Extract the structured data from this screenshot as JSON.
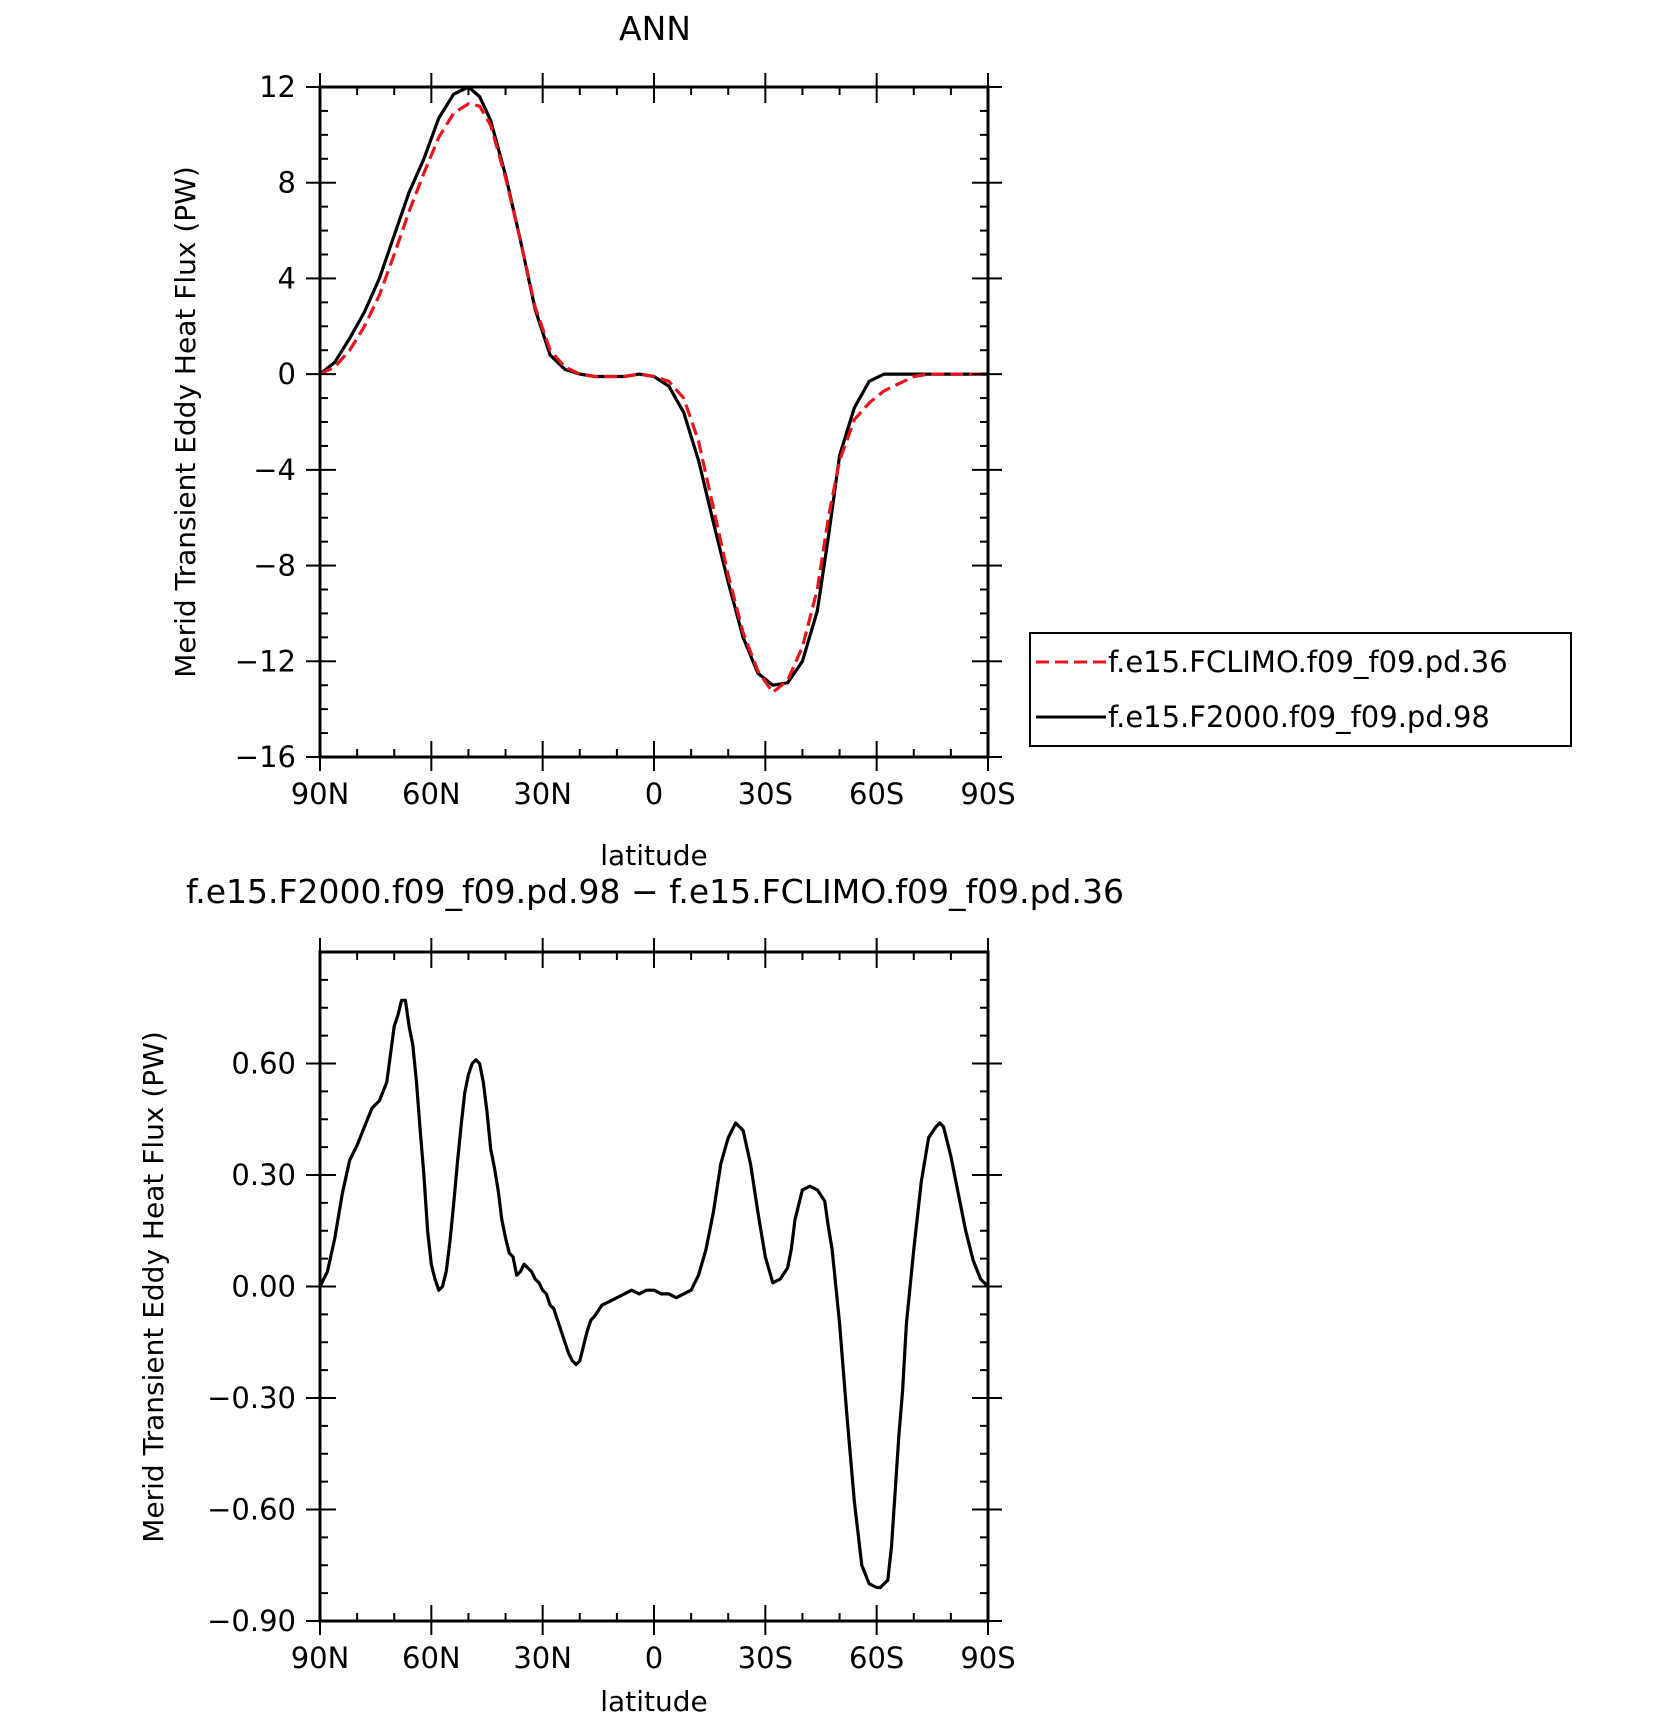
{
  "chart_data": [
    {
      "type": "line",
      "title": "ANN",
      "xlabel": "latitude",
      "ylabel": "Merid Transient Eddy Heat Flux (PW)",
      "x_ticks": [
        90,
        60,
        30,
        0,
        -30,
        -60,
        -90
      ],
      "x_tick_labels": [
        "90N",
        "60N",
        "30N",
        "0",
        "30S",
        "60S",
        "90S"
      ],
      "xlim": [
        90,
        -90
      ],
      "ylim": [
        -16,
        12
      ],
      "y_ticks": [
        12,
        8,
        4,
        0,
        -4,
        -8,
        -12,
        -16
      ],
      "y_tick_labels": [
        "12",
        "8",
        "4",
        "0",
        "−4",
        "−8",
        "−12",
        "−16"
      ],
      "legend_position": "right",
      "series": [
        {
          "name": "f.e15.FCLIMO.f09_f09.pd.36",
          "color": "#e8141e",
          "dash": "dashed",
          "x": [
            90,
            86,
            82,
            78,
            74,
            70,
            66,
            62,
            58,
            54,
            50,
            47,
            44,
            40,
            36,
            32,
            28,
            24,
            20,
            16,
            12,
            8,
            4,
            0,
            -4,
            -8,
            -12,
            -16,
            -20,
            -24,
            -28,
            -32,
            -36,
            -40,
            -44,
            -47,
            -50,
            -54,
            -58,
            -62,
            -66,
            -70,
            -74,
            -78,
            -82,
            -86,
            -90
          ],
          "values": [
            0.0,
            0.3,
            1.0,
            2.0,
            3.3,
            5.0,
            6.8,
            8.4,
            9.9,
            10.9,
            11.3,
            11.2,
            10.4,
            8.2,
            5.6,
            2.8,
            1.0,
            0.3,
            0.0,
            -0.1,
            -0.1,
            -0.1,
            0.0,
            -0.1,
            -0.3,
            -1.0,
            -2.8,
            -5.6,
            -8.4,
            -10.8,
            -12.4,
            -13.3,
            -12.8,
            -11.4,
            -9.0,
            -6.0,
            -3.6,
            -1.9,
            -1.2,
            -0.7,
            -0.4,
            -0.1,
            0.0,
            0.0,
            0.0,
            0.0,
            0.0
          ]
        },
        {
          "name": "f.e15.F2000.f09_f09.pd.98",
          "color": "#000000",
          "dash": "solid",
          "x": [
            90,
            86,
            82,
            78,
            74,
            70,
            66,
            62,
            58,
            54,
            50,
            47,
            44,
            40,
            36,
            32,
            28,
            24,
            20,
            16,
            12,
            8,
            4,
            0,
            -4,
            -8,
            -12,
            -16,
            -20,
            -24,
            -28,
            -32,
            -36,
            -40,
            -44,
            -47,
            -50,
            -54,
            -58,
            -62,
            -66,
            -70,
            -74,
            -78,
            -82,
            -86,
            -90
          ],
          "values": [
            0.0,
            0.5,
            1.5,
            2.6,
            4.0,
            5.8,
            7.6,
            9.0,
            10.7,
            11.7,
            12.0,
            11.6,
            10.6,
            8.3,
            5.6,
            2.7,
            0.8,
            0.2,
            0.0,
            -0.1,
            -0.1,
            -0.1,
            0.0,
            -0.1,
            -0.5,
            -1.6,
            -3.6,
            -6.2,
            -8.7,
            -11.0,
            -12.5,
            -13.0,
            -12.9,
            -12.0,
            -9.9,
            -6.8,
            -3.4,
            -1.4,
            -0.3,
            0.0,
            0.0,
            0.0,
            0.0,
            0.0,
            0.0,
            0.0,
            0.0
          ]
        }
      ]
    },
    {
      "type": "line",
      "title": "f.e15.F2000.f09_f09.pd.98 − f.e15.FCLIMO.f09_f09.pd.36",
      "xlabel": "latitude",
      "ylabel": "Merid Transient Eddy Heat Flux (PW)",
      "x_ticks": [
        90,
        60,
        30,
        0,
        -30,
        -60,
        -90
      ],
      "x_tick_labels": [
        "90N",
        "60N",
        "30N",
        "0",
        "30S",
        "60S",
        "90S"
      ],
      "xlim": [
        90,
        -90
      ],
      "ylim": [
        -0.9,
        0.9
      ],
      "y_ticks": [
        0.6,
        0.3,
        0.0,
        -0.3,
        -0.6,
        -0.9
      ],
      "y_tick_labels": [
        "0.60",
        "0.30",
        "0.00",
        "−0.30",
        "−0.60",
        "−0.90"
      ],
      "series": [
        {
          "color": "#000000",
          "dash": "solid",
          "x": [
            90,
            88,
            86,
            84,
            82,
            80,
            78,
            76,
            74,
            72,
            70,
            69,
            68,
            67,
            66,
            65,
            64,
            63,
            62,
            61,
            60,
            59,
            58,
            57,
            56,
            55,
            54,
            53,
            52,
            51,
            50,
            49,
            48,
            47,
            46,
            45,
            44,
            43,
            42,
            41,
            40,
            39,
            38,
            37,
            36,
            35,
            34,
            33,
            32,
            31,
            30,
            29,
            28,
            27,
            26,
            25,
            24,
            23,
            22,
            21,
            20,
            19,
            18,
            17,
            16,
            14,
            12,
            10,
            8,
            6,
            4,
            2,
            0,
            -2,
            -4,
            -6,
            -8,
            -10,
            -12,
            -14,
            -16,
            -18,
            -20,
            -22,
            -24,
            -26,
            -28,
            -30,
            -32,
            -34,
            -36,
            -37,
            -38,
            -40,
            -42,
            -44,
            -46,
            -47,
            -48,
            -50,
            -52,
            -54,
            -56,
            -58,
            -60,
            -61,
            -62,
            -63,
            -64,
            -65,
            -66,
            -67,
            -68,
            -70,
            -72,
            -74,
            -76,
            -77,
            -78,
            -80,
            -82,
            -84,
            -86,
            -88,
            -90
          ],
          "values": [
            0.0,
            0.04,
            0.13,
            0.25,
            0.34,
            0.38,
            0.43,
            0.48,
            0.5,
            0.55,
            0.7,
            0.73,
            0.77,
            0.77,
            0.7,
            0.65,
            0.55,
            0.42,
            0.3,
            0.15,
            0.06,
            0.02,
            -0.01,
            0.0,
            0.04,
            0.12,
            0.22,
            0.33,
            0.43,
            0.52,
            0.57,
            0.6,
            0.61,
            0.6,
            0.55,
            0.47,
            0.37,
            0.32,
            0.26,
            0.18,
            0.13,
            0.09,
            0.08,
            0.03,
            0.04,
            0.06,
            0.05,
            0.04,
            0.02,
            0.01,
            -0.01,
            -0.02,
            -0.05,
            -0.06,
            -0.09,
            -0.12,
            -0.15,
            -0.18,
            -0.2,
            -0.21,
            -0.2,
            -0.16,
            -0.12,
            -0.09,
            -0.08,
            -0.05,
            -0.04,
            -0.03,
            -0.02,
            -0.01,
            -0.02,
            -0.01,
            -0.01,
            -0.02,
            -0.02,
            -0.03,
            -0.02,
            -0.01,
            0.03,
            0.1,
            0.2,
            0.33,
            0.4,
            0.44,
            0.42,
            0.33,
            0.2,
            0.08,
            0.01,
            0.02,
            0.05,
            0.1,
            0.18,
            0.26,
            0.27,
            0.26,
            0.23,
            0.16,
            0.1,
            -0.1,
            -0.35,
            -0.58,
            -0.75,
            -0.8,
            -0.81,
            -0.81,
            -0.8,
            -0.79,
            -0.7,
            -0.55,
            -0.4,
            -0.28,
            -0.1,
            0.1,
            0.28,
            0.4,
            0.43,
            0.44,
            0.43,
            0.35,
            0.25,
            0.15,
            0.07,
            0.02,
            0.0
          ]
        }
      ]
    }
  ]
}
